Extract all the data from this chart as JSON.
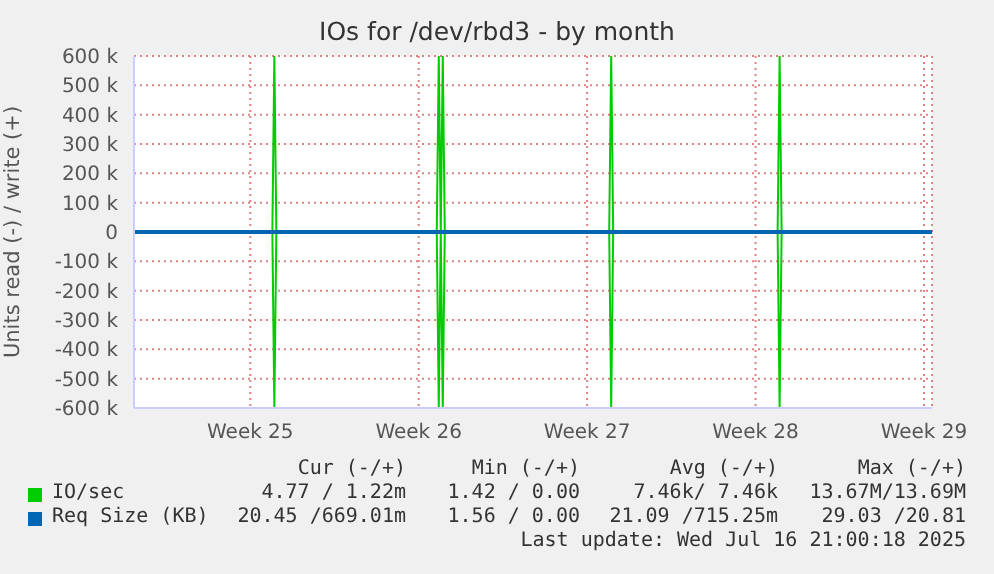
{
  "chart_data": {
    "type": "line",
    "title": "IOs for /dev/rbd3 - by month",
    "ylabel": "Units read (-) / write (+)",
    "x": [
      "2025-06-11T04:00",
      "2025-06-16T22:00",
      "2025-06-17T00:00",
      "2025-06-17T02:00",
      "2025-06-23T18:00",
      "2025-06-23T20:00",
      "2025-06-23T22:00",
      "2025-06-24T00:00",
      "2025-06-24T02:00",
      "2025-06-30T22:00",
      "2025-07-01T00:00",
      "2025-07-01T02:00",
      "2025-07-07T22:00",
      "2025-07-08T00:00",
      "2025-07-08T02:00",
      "2025-07-14T08:00"
    ],
    "xlim": [
      "2025-06-11T04:00",
      "2025-07-14T08:00"
    ],
    "xticks": [
      {
        "value": "2025-06-16",
        "label": "Week 25"
      },
      {
        "value": "2025-06-23",
        "label": "Week 26"
      },
      {
        "value": "2025-06-30",
        "label": "Week 27"
      },
      {
        "value": "2025-07-07",
        "label": "Week 28"
      },
      {
        "value": "2025-07-14",
        "label": "Week 29"
      }
    ],
    "ylim": [
      -600000,
      600000
    ],
    "yticks": [
      {
        "value": -600000,
        "label": "-600 k"
      },
      {
        "value": -500000,
        "label": "-500 k"
      },
      {
        "value": -400000,
        "label": "-400 k"
      },
      {
        "value": -300000,
        "label": "-300 k"
      },
      {
        "value": -200000,
        "label": "-200 k"
      },
      {
        "value": -100000,
        "label": "-100 k"
      },
      0,
      {
        "value": 100000,
        "label": "100 k"
      },
      {
        "value": 200000,
        "label": "200 k"
      },
      {
        "value": 300000,
        "label": "300 k"
      },
      {
        "value": 400000,
        "label": "400 k"
      },
      {
        "value": 500000,
        "label": "500 k"
      },
      {
        "value": 600000,
        "label": "600 k"
      }
    ],
    "series": [
      {
        "color": "#00cc00",
        "values": [
          0,
          0,
          -600000,
          0,
          0,
          -600000,
          0,
          -600000,
          0,
          0,
          -600000,
          0,
          0,
          -600000,
          0,
          0
        ]
      },
      {
        "name": "IO/sec",
        "color": "#00cc00",
        "values": [
          0,
          0,
          600000,
          0,
          0,
          600000,
          0,
          600000,
          0,
          0,
          600000,
          0,
          0,
          600000,
          0,
          0
        ]
      },
      {
        "name": "Req Size (KB)",
        "color": "#0066b3",
        "values": [
          0,
          0,
          0,
          0,
          0,
          0,
          0,
          0,
          0,
          0,
          0,
          0,
          0,
          0,
          0,
          0
        ]
      }
    ],
    "annotations": [
      "Cur (-/+)",
      "Min (-/+)",
      "Avg (-/+)",
      "Max (-/+)",
      "4.77 / 1.22m",
      "1.42 / 0.00",
      "7.46k/ 7.46k",
      "13.67M/13.69M",
      "20.45 /669.01m",
      "1.56 / 0.00",
      "21.09 /715.25m",
      "29.03 /20.81",
      "Last update: Wed Jul 16 21:00:18 2025"
    ],
    "grid": true,
    "legend": "bottom",
    "line_style": "solid",
    "marker": "none"
  }
}
